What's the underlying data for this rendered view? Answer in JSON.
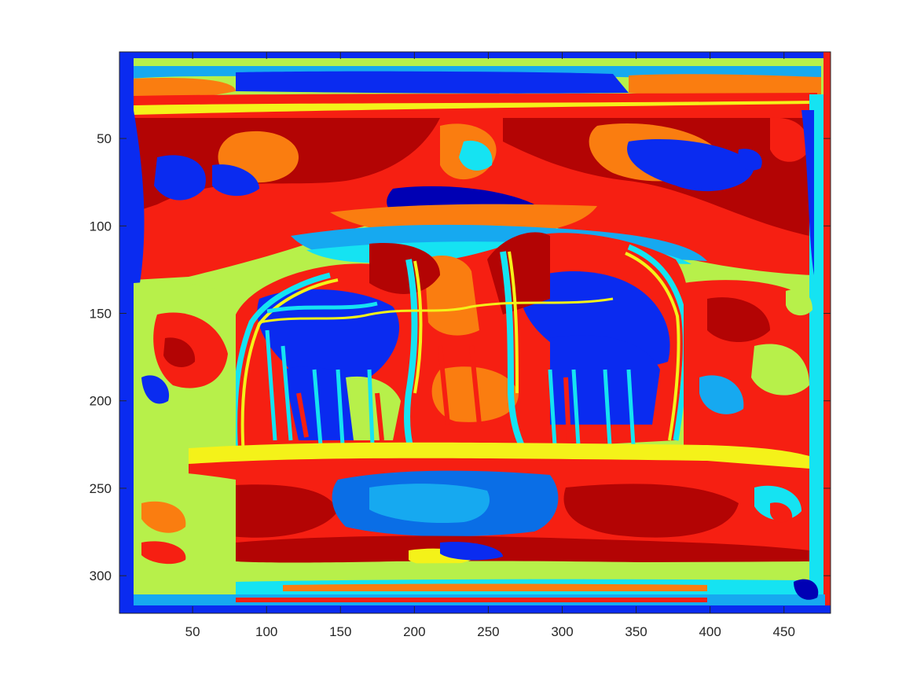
{
  "chart_data": {
    "type": "heatmap",
    "title": "",
    "xlabel": "",
    "ylabel": "",
    "xlim": [
      0.5,
      481.5
    ],
    "ylim": [
      0.5,
      321.5
    ],
    "y_direction": "reverse",
    "x_ticks": [
      50,
      100,
      150,
      200,
      250,
      300,
      350,
      400,
      450
    ],
    "y_ticks": [
      50,
      100,
      150,
      200,
      250,
      300
    ],
    "colormap": "jet",
    "grid": false,
    "legend": "none",
    "colors": {
      "dark_blue": "#0000b4",
      "blue": "#0a2bf0",
      "medium_blue": "#0a6ee6",
      "light_blue": "#16a9f0",
      "cyan": "#15e3f2",
      "yellow_green": "#b7f04a",
      "yellow": "#f4f219",
      "orange": "#fa7d10",
      "red": "#f61f12",
      "dark_red": "#b30404"
    }
  }
}
